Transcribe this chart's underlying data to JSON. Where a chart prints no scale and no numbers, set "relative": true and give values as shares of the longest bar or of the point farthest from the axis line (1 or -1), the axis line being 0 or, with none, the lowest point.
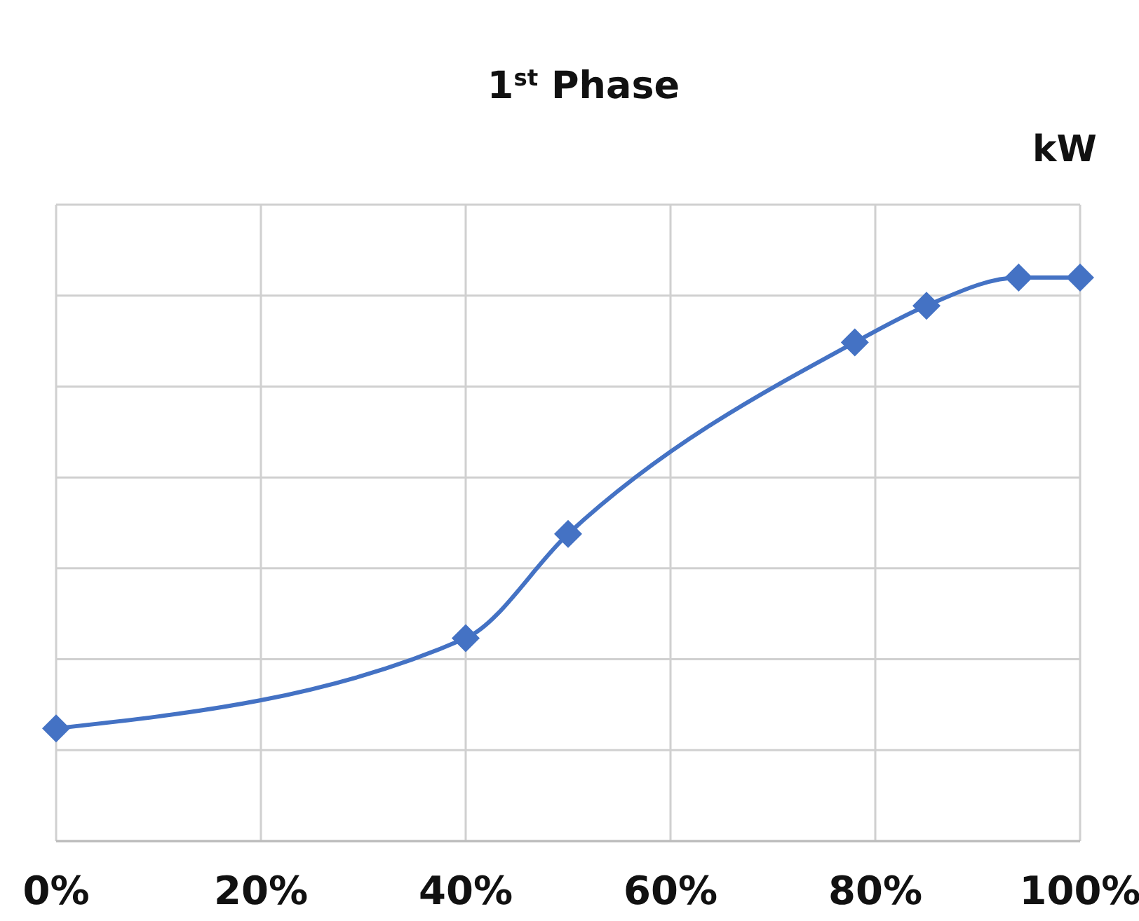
{
  "chart_data": {
    "type": "line",
    "title": "1$^{st}$ Phase",
    "ylabel": "kW",
    "relative": true,
    "x": [
      0,
      40,
      50,
      78,
      85,
      94,
      100
    ],
    "series": [
      {
        "color": "#4472c4",
        "values": [
          0.2,
          0.36,
          0.545,
          0.885,
          0.95,
          1,
          1
        ]
      }
    ],
    "xlim": [
      0,
      100
    ],
    "xticks": [
      {
        "value": 0,
        "label": "0%"
      },
      {
        "value": 20,
        "label": "20%"
      },
      {
        "value": 40,
        "label": "40%"
      },
      {
        "value": 60,
        "label": "60%"
      },
      {
        "value": 80,
        "label": "80%"
      },
      {
        "value": 100,
        "label": "100%"
      }
    ],
    "grid": true,
    "marker": "diamond",
    "line_style": "solid"
  }
}
